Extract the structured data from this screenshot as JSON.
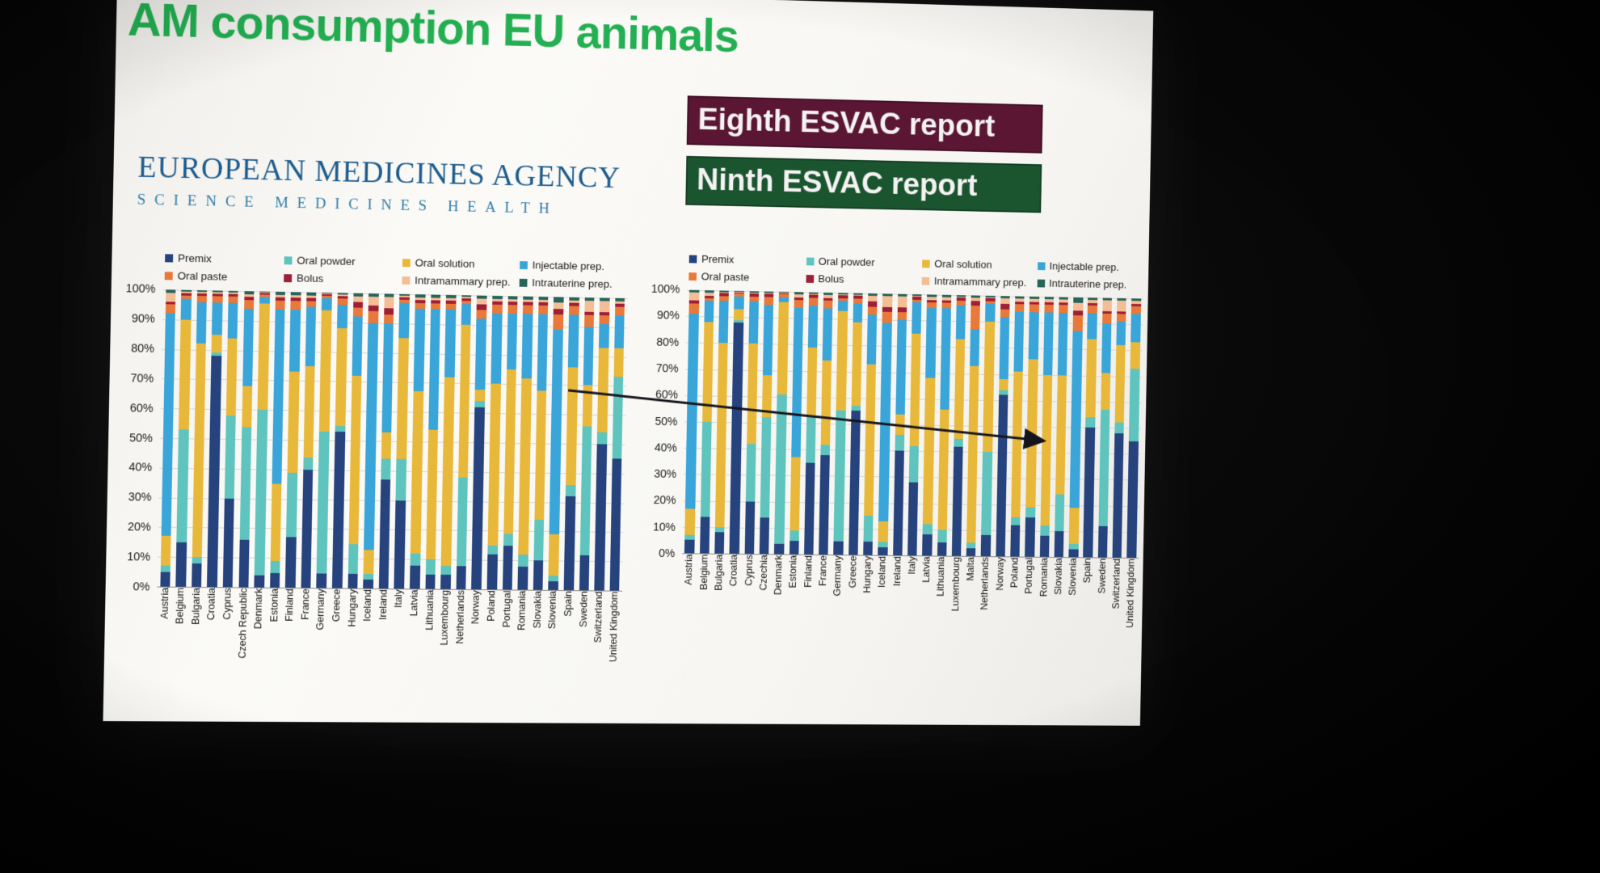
{
  "slide": {
    "title": "AM consumption EU animals",
    "title_color": "#23af52",
    "logo": {
      "line1": "EUROPEAN MEDICINES AGENCY",
      "line2": "SCIENCE MEDICINES HEALTH"
    },
    "reports": [
      {
        "label": "Eighth ESVAC report",
        "bg": "#5a1632"
      },
      {
        "label": "Ninth ESVAC report",
        "bg": "#1b5530"
      }
    ],
    "annotation": "black arrow pointing from the Eighth-report chart (about 68%) to the Ninth-report chart (about 50%)"
  },
  "chart_data": [
    {
      "type": "bar",
      "variant": "stacked-100-percent",
      "title": "Eighth ESVAC report",
      "xlabel": "",
      "ylabel": "",
      "ylim": [
        0,
        100
      ],
      "ytick_step": 10,
      "ytick_suffix": "%",
      "grid": true,
      "legend_position": "top",
      "categories": [
        "Austria",
        "Belgium",
        "Bulgaria",
        "Croatia",
        "Cyprus",
        "Czech Republic",
        "Denmark",
        "Estonia",
        "Finland",
        "France",
        "Germany",
        "Greece",
        "Hungary",
        "Iceland",
        "Ireland",
        "Italy",
        "Latvia",
        "Lithuania",
        "Luxembourg",
        "Netherlands",
        "Norway",
        "Poland",
        "Portugal",
        "Romania",
        "Slovakia",
        "Slovenia",
        "Spain",
        "Sweden",
        "Switzerland",
        "United Kingdom"
      ],
      "series": [
        {
          "name": "Premix",
          "color": "#26437e",
          "values": [
            5,
            15,
            8,
            78,
            30,
            16,
            4,
            5,
            17,
            40,
            5,
            53,
            5,
            3,
            37,
            30,
            8,
            5,
            5,
            8,
            62,
            12,
            15,
            8,
            10,
            3,
            32,
            12,
            50,
            45
          ]
        },
        {
          "name": "Oral powder",
          "color": "#5fc4bd",
          "values": [
            2,
            38,
            2,
            1,
            28,
            38,
            56,
            4,
            22,
            4,
            48,
            2,
            10,
            2,
            7,
            14,
            4,
            5,
            3,
            30,
            2,
            3,
            4,
            4,
            14,
            2,
            4,
            44,
            4,
            28
          ]
        },
        {
          "name": "Oral solution",
          "color": "#e8b83b",
          "values": [
            10,
            37,
            72,
            6,
            26,
            14,
            36,
            26,
            34,
            31,
            41,
            33,
            57,
            8,
            9,
            41,
            55,
            44,
            64,
            52,
            4,
            55,
            56,
            60,
            44,
            14,
            40,
            14,
            29,
            10
          ]
        },
        {
          "name": "Injectable prep.",
          "color": "#3aa5d8",
          "values": [
            75,
            7,
            14,
            11,
            12,
            26,
            2,
            59,
            21,
            20,
            4,
            8,
            20,
            77,
            37,
            12,
            28,
            41,
            23,
            7,
            24,
            24,
            19,
            22,
            26,
            70,
            18,
            20,
            8,
            11
          ]
        },
        {
          "name": "Oral paste",
          "color": "#e8793a",
          "values": [
            3,
            1,
            2,
            2,
            2,
            3,
            1,
            3,
            3,
            2,
            1,
            2,
            3,
            4,
            3,
            1,
            2,
            2,
            2,
            1,
            3,
            3,
            3,
            3,
            3,
            5,
            3,
            4,
            3,
            3
          ]
        },
        {
          "name": "Bolus",
          "color": "#9e1f36",
          "values": [
            1,
            1,
            1,
            1,
            1,
            1,
            0.5,
            1,
            1,
            1,
            0.5,
            1,
            2,
            2,
            2,
            1,
            1,
            1,
            1,
            1,
            2,
            1,
            1,
            1,
            1,
            2,
            1,
            1,
            1,
            1
          ]
        },
        {
          "name": "Intramammary prep.",
          "color": "#f3bd95",
          "values": [
            3,
            0.5,
            0.5,
            0.5,
            0.5,
            1,
            0.3,
            1,
            1,
            1,
            0.3,
            0.5,
            2,
            3,
            4,
            0.5,
            1,
            1,
            1,
            0.5,
            2,
            1,
            1,
            1,
            1,
            2,
            1,
            4,
            4,
            1
          ]
        },
        {
          "name": "Intrauterine prep.",
          "color": "#27645a",
          "values": [
            1,
            0.5,
            0.5,
            0.5,
            0.5,
            1,
            0.2,
            1,
            1,
            1,
            0.2,
            0.5,
            1,
            1,
            1,
            0.5,
            1,
            1,
            1,
            0.5,
            1,
            1,
            1,
            1,
            1,
            2,
            1,
            1,
            1,
            1
          ]
        }
      ]
    },
    {
      "type": "bar",
      "variant": "stacked-100-percent",
      "title": "Ninth ESVAC report",
      "xlabel": "",
      "ylabel": "",
      "ylim": [
        0,
        100
      ],
      "ytick_step": 10,
      "ytick_suffix": "%",
      "grid": true,
      "legend_position": "top",
      "categories": [
        "Austria",
        "Belgium",
        "Bulgaria",
        "Croatia",
        "Cyprus",
        "Czechia",
        "Denmark",
        "Estonia",
        "Finland",
        "France",
        "Germany",
        "Greece",
        "Hungary",
        "Iceland",
        "Ireland",
        "Italy",
        "Latvia",
        "Lithuania",
        "Luxembourg",
        "Malta",
        "Netherlands",
        "Norway",
        "Poland",
        "Portugal",
        "Romania",
        "Slovakia",
        "Slovenia",
        "Spain",
        "Sweden",
        "Switzerland",
        "United Kingdom"
      ],
      "series": [
        {
          "name": "Premix",
          "color": "#26437e",
          "values": [
            5,
            14,
            8,
            88,
            20,
            14,
            4,
            5,
            35,
            38,
            5,
            55,
            5,
            3,
            40,
            28,
            8,
            5,
            42,
            3,
            8,
            62,
            12,
            15,
            8,
            10,
            3,
            50,
            12,
            48,
            45
          ]
        },
        {
          "name": "Oral powder",
          "color": "#5fc4bd",
          "values": [
            2,
            36,
            2,
            1,
            22,
            38,
            57,
            4,
            18,
            4,
            50,
            2,
            10,
            2,
            6,
            14,
            4,
            5,
            3,
            2,
            32,
            2,
            3,
            4,
            4,
            14,
            2,
            4,
            45,
            4,
            28
          ]
        },
        {
          "name": "Oral solution",
          "color": "#e8b83b",
          "values": [
            10,
            38,
            70,
            4,
            38,
            16,
            35,
            28,
            26,
            32,
            38,
            32,
            58,
            8,
            8,
            43,
            56,
            46,
            38,
            68,
            50,
            4,
            56,
            57,
            58,
            46,
            14,
            30,
            14,
            30,
            10
          ]
        },
        {
          "name": "Injectable prep.",
          "color": "#3aa5d8",
          "values": [
            74,
            8,
            16,
            5,
            16,
            27,
            2,
            57,
            16,
            20,
            4,
            7,
            19,
            76,
            36,
            12,
            27,
            39,
            13,
            14,
            7,
            24,
            23,
            18,
            24,
            24,
            68,
            10,
            19,
            9,
            11
          ]
        },
        {
          "name": "Oral paste",
          "color": "#e8793a",
          "values": [
            4,
            1,
            2,
            1,
            2,
            3,
            1,
            3,
            3,
            3,
            1,
            2,
            3,
            4,
            3,
            1,
            2,
            2,
            2,
            9,
            1,
            3,
            3,
            3,
            3,
            3,
            6,
            3,
            4,
            3,
            3
          ]
        },
        {
          "name": "Bolus",
          "color": "#9e1f36",
          "values": [
            1,
            1,
            1,
            0.5,
            1,
            1,
            0.5,
            1,
            1,
            1,
            1,
            1,
            2,
            2,
            2,
            1,
            1,
            1,
            1,
            2,
            1,
            2,
            1,
            1,
            1,
            1,
            2,
            1,
            1,
            1,
            1
          ]
        },
        {
          "name": "Intramammary prep.",
          "color": "#f3bd95",
          "values": [
            3,
            1,
            0.5,
            0.3,
            0.5,
            0.5,
            0.3,
            1,
            0.5,
            1,
            0.5,
            0.5,
            2,
            4,
            4,
            0.5,
            1,
            1,
            0.5,
            1,
            0.5,
            2,
            1,
            1,
            1,
            1,
            3,
            1,
            4,
            4,
            1
          ]
        },
        {
          "name": "Intrauterine prep.",
          "color": "#27645a",
          "values": [
            1,
            1,
            0.5,
            0.2,
            0.5,
            0.5,
            0.2,
            1,
            0.5,
            1,
            0.5,
            0.5,
            1,
            1,
            1,
            0.5,
            1,
            1,
            0.5,
            1,
            0.5,
            1,
            1,
            1,
            1,
            1,
            2,
            1,
            1,
            1,
            1
          ]
        }
      ]
    }
  ]
}
